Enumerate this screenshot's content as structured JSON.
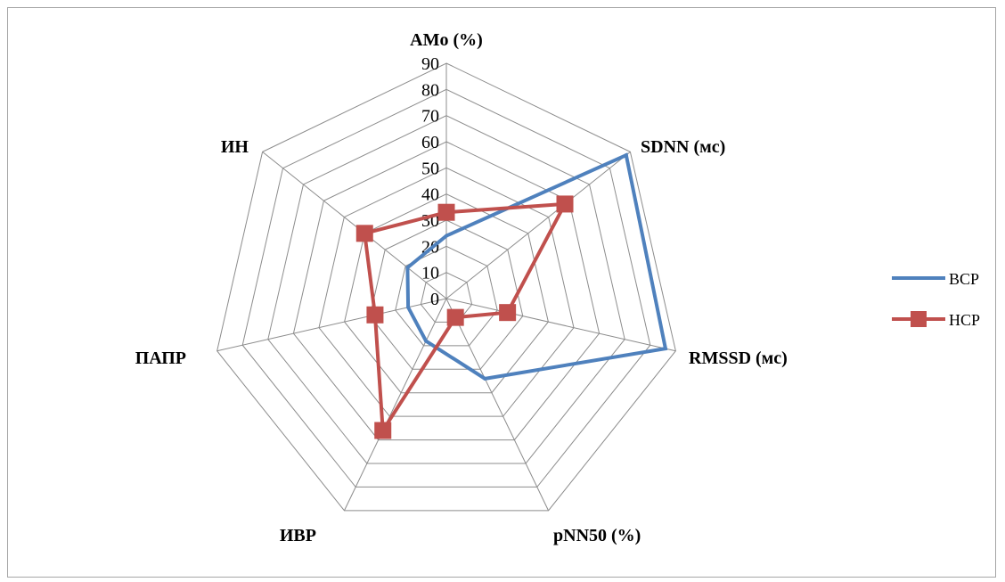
{
  "chart_data": {
    "type": "radar",
    "axes": [
      "AMo (%)",
      "SDNN (мс)",
      "RMSSD (мс)",
      "pNN50 (%)",
      "ИВР",
      "ПАПР",
      "ИН"
    ],
    "rlim": [
      0,
      90
    ],
    "ticks": [
      0,
      10,
      20,
      30,
      40,
      50,
      60,
      70,
      80,
      90
    ],
    "grid": true,
    "legend_position": "right",
    "series": [
      {
        "name": "ВСР",
        "color": "#4F81BD",
        "marker": "none",
        "values": [
          24,
          88,
          86,
          34,
          18,
          15,
          19
        ]
      },
      {
        "name": "НСР",
        "color": "#C0504D",
        "marker": "square",
        "values": [
          33,
          58,
          24,
          8,
          56,
          28,
          40
        ]
      }
    ]
  }
}
